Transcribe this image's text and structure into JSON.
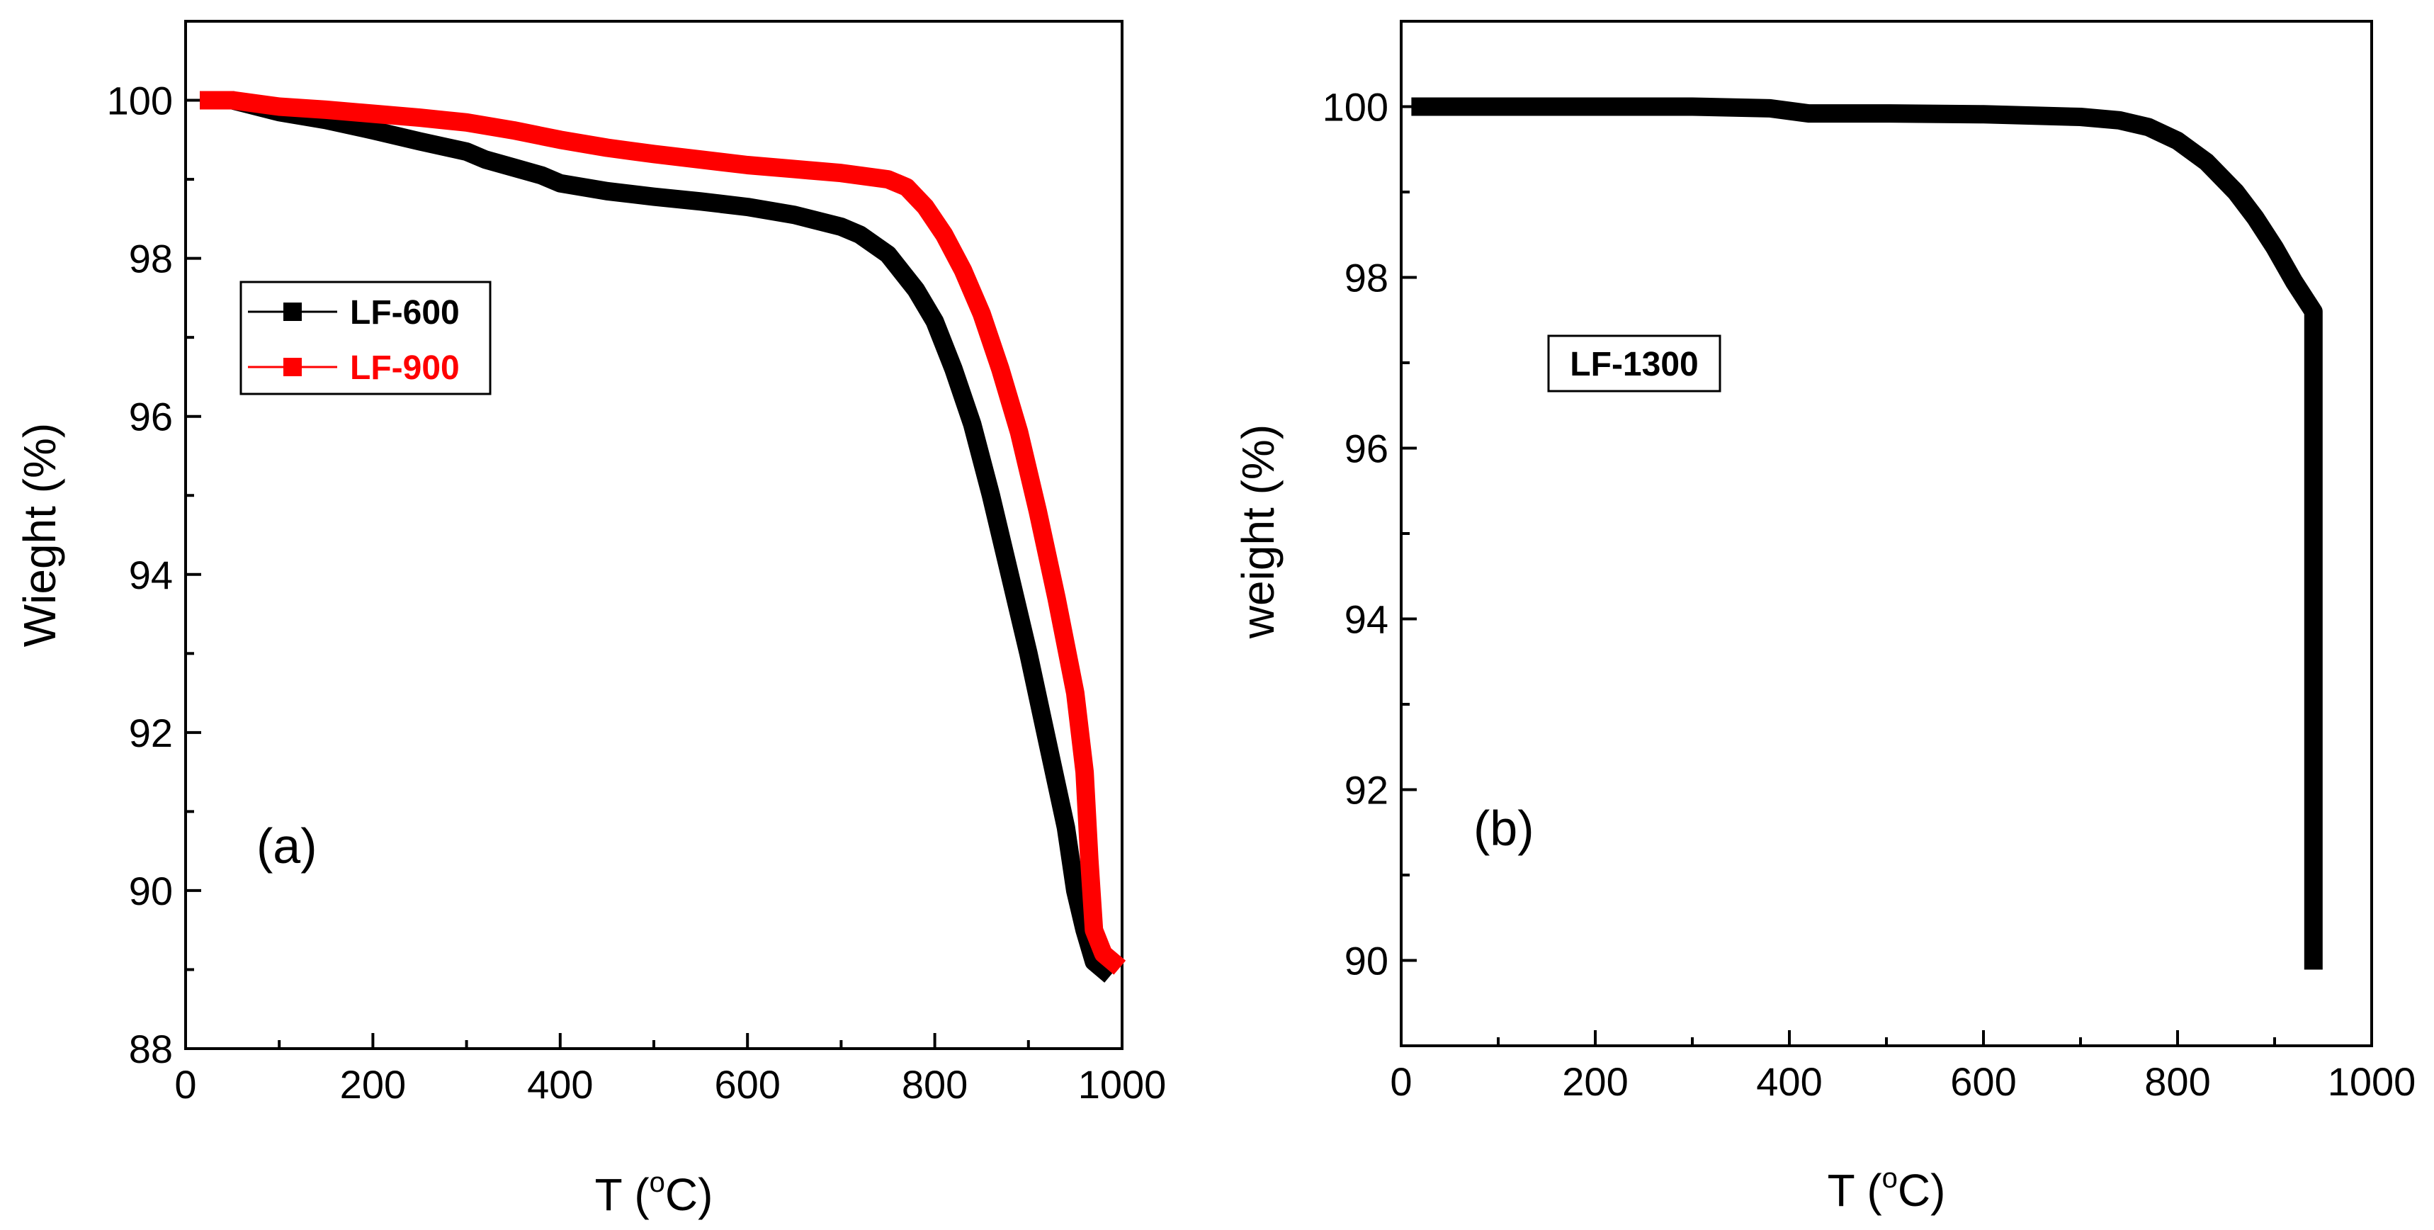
{
  "chart_data": [
    {
      "type": "line",
      "panel_label": "(a)",
      "xlabel": "T (",
      "xlabel_sup": "o",
      "xlabel_end": "C)",
      "ylabel": "Wieght (%)",
      "xlim": [
        0,
        1000
      ],
      "ylim": [
        88,
        101
      ],
      "xticks": [
        0,
        200,
        400,
        600,
        800,
        1000
      ],
      "yticks": [
        88,
        90,
        92,
        94,
        96,
        98,
        100
      ],
      "legend_position": "upper-left",
      "series": [
        {
          "name": "LF-600",
          "color": "#000000",
          "x": [
            25,
            50,
            100,
            150,
            200,
            250,
            300,
            320,
            350,
            380,
            400,
            450,
            500,
            550,
            600,
            650,
            700,
            720,
            750,
            780,
            800,
            820,
            840,
            860,
            880,
            900,
            920,
            940,
            950,
            960,
            970,
            980
          ],
          "y": [
            100,
            100,
            99.85,
            99.75,
            99.62,
            99.48,
            99.35,
            99.25,
            99.15,
            99.05,
            98.95,
            98.85,
            98.78,
            98.72,
            98.65,
            98.55,
            98.4,
            98.3,
            98.05,
            97.6,
            97.2,
            96.6,
            95.9,
            95.0,
            94.0,
            93.0,
            91.9,
            90.8,
            90.0,
            89.5,
            89.1,
            89.0
          ]
        },
        {
          "name": "LF-900",
          "color": "#ff0000",
          "x": [
            25,
            50,
            100,
            150,
            200,
            250,
            300,
            350,
            400,
            450,
            500,
            550,
            600,
            650,
            700,
            750,
            770,
            790,
            810,
            830,
            850,
            870,
            890,
            910,
            930,
            950,
            960,
            965,
            970,
            980,
            990
          ],
          "y": [
            100,
            100,
            99.92,
            99.88,
            99.83,
            99.78,
            99.72,
            99.62,
            99.5,
            99.4,
            99.32,
            99.25,
            99.18,
            99.13,
            99.08,
            99.0,
            98.9,
            98.65,
            98.3,
            97.85,
            97.3,
            96.6,
            95.8,
            94.8,
            93.7,
            92.5,
            91.5,
            90.4,
            89.5,
            89.2,
            89.1
          ]
        }
      ]
    },
    {
      "type": "line",
      "panel_label": "(b)",
      "xlabel": "T (",
      "xlabel_sup": "o",
      "xlabel_end": "C)",
      "ylabel": "weight (%)",
      "xlim": [
        0,
        1000
      ],
      "ylim": [
        89,
        101
      ],
      "xticks": [
        0,
        200,
        400,
        600,
        800,
        1000
      ],
      "yticks": [
        90,
        92,
        94,
        96,
        98,
        100
      ],
      "legend_position": "upper-left",
      "series": [
        {
          "name": "LF-1300",
          "color": "#000000",
          "x": [
            20,
            100,
            200,
            300,
            380,
            420,
            500,
            600,
            700,
            740,
            770,
            800,
            830,
            860,
            880,
            900,
            920,
            940,
            940
          ],
          "y": [
            100,
            100,
            100,
            100,
            99.98,
            99.92,
            99.92,
            99.91,
            99.88,
            99.84,
            99.76,
            99.6,
            99.35,
            99.0,
            98.7,
            98.35,
            97.95,
            97.6,
            90.0
          ]
        }
      ]
    }
  ]
}
